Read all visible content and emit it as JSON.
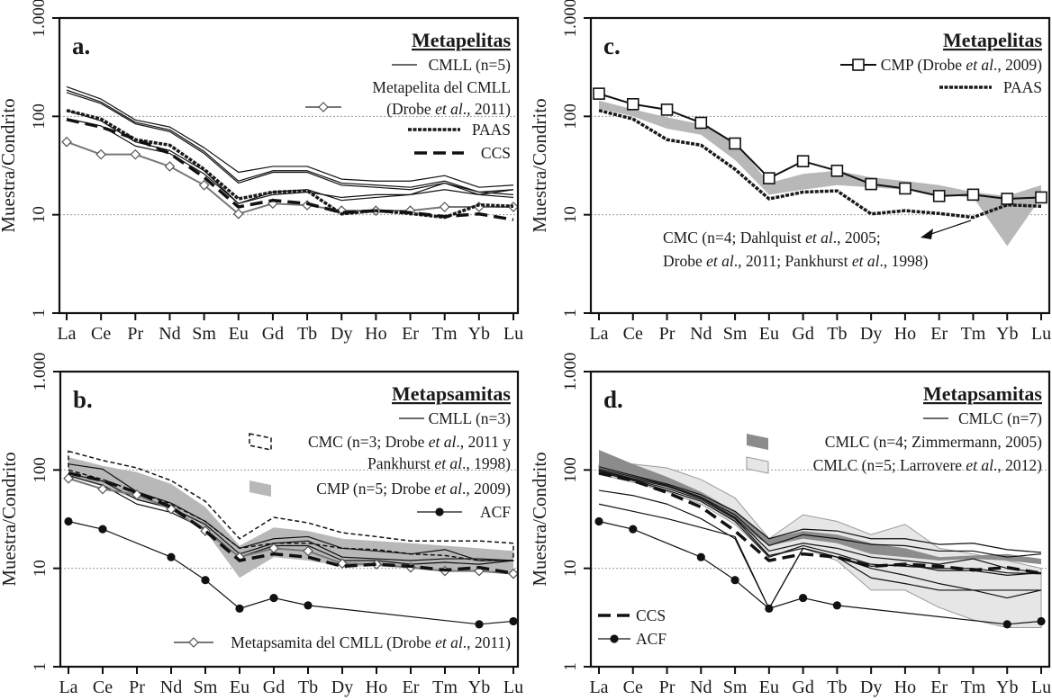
{
  "chart_data": [
    {
      "id": "a",
      "type": "line",
      "panel_label": "a.",
      "title": "Metapelitas",
      "xlabel": "",
      "ylabel": "Muestra/Condrito",
      "yscale": "log",
      "ylim": [
        1,
        1000
      ],
      "yticks": [
        1,
        10,
        100,
        1000
      ],
      "ytick_labels": [
        "1",
        "10",
        "100",
        "1.000"
      ],
      "grid": "dotted at 10 and 100",
      "categories": [
        "La",
        "Ce",
        "Pr",
        "Nd",
        "Sm",
        "Eu",
        "Gd",
        "Tb",
        "Dy",
        "Ho",
        "Er",
        "Tm",
        "Yb",
        "Lu"
      ],
      "legend": [
        {
          "label": "CMLL (n=5)",
          "style": "thin-line"
        },
        {
          "label": "Metapelita del CMLL (Drobe et al., 2011)",
          "style": "grey-diamond"
        },
        {
          "label": "PAAS",
          "style": "dotted-thick"
        },
        {
          "label": "CCS",
          "style": "dashed-thick"
        }
      ],
      "series": [
        {
          "name": "CMLL-1",
          "group": "CMLL (n=5)",
          "style": "thin-line",
          "values": [
            200,
            150,
            92,
            78,
            48,
            27,
            31,
            31,
            23,
            22,
            22,
            25,
            19,
            20
          ]
        },
        {
          "name": "CMLL-2",
          "group": "CMLL (n=5)",
          "style": "thin-line",
          "values": [
            185,
            140,
            87,
            73,
            44,
            22,
            28,
            28,
            21,
            20,
            19,
            22,
            17,
            18
          ]
        },
        {
          "name": "CMLL-3",
          "group": "CMLL (n=5)",
          "style": "thin-line",
          "values": [
            175,
            135,
            84,
            70,
            42,
            21,
            27,
            27,
            20,
            19,
            18,
            21,
            16,
            18
          ]
        },
        {
          "name": "CMLL-4",
          "group": "CMLL (n=5)",
          "style": "thin-line",
          "values": [
            115,
            90,
            55,
            45,
            28,
            13,
            16,
            17,
            15,
            16,
            16,
            21,
            17,
            16
          ]
        },
        {
          "name": "CMLL-5",
          "group": "CMLL (n=5)",
          "style": "thin-line",
          "values": [
            95,
            80,
            50,
            42,
            26,
            13,
            17,
            18,
            14,
            15,
            16,
            18,
            16,
            15
          ]
        },
        {
          "name": "Metapelita del CMLL",
          "style": "grey-diamond",
          "values": [
            55,
            41,
            41,
            31,
            20,
            10.2,
            13,
            12.5,
            11,
            11,
            11,
            12,
            12,
            12
          ]
        },
        {
          "name": "PAAS",
          "style": "dotted-thick",
          "values": [
            115,
            94,
            58,
            51,
            29,
            14.5,
            17,
            17.5,
            10.2,
            11,
            10.3,
            9.4,
            12.6,
            12.2
          ]
        },
        {
          "name": "CCS",
          "style": "dashed-thick",
          "values": [
            93,
            78,
            59,
            42,
            24,
            12,
            14,
            13,
            10.5,
            11,
            10.5,
            9.6,
            10.2,
            8.9
          ]
        }
      ]
    },
    {
      "id": "b",
      "type": "line",
      "panel_label": "b.",
      "title": "Metapsamitas",
      "xlabel": "",
      "ylabel": "Muestra/Condrito",
      "yscale": "log",
      "ylim": [
        1,
        1000
      ],
      "yticks": [
        1,
        10,
        100,
        1000
      ],
      "ytick_labels": [
        "1",
        "10",
        "100",
        "1.000"
      ],
      "grid": "dotted at 10 and 100",
      "categories": [
        "La",
        "Ce",
        "Pr",
        "Nd",
        "Sm",
        "Eu",
        "Gd",
        "Tb",
        "Dy",
        "Ho",
        "Er",
        "Tm",
        "Yb",
        "Lu"
      ],
      "legend": [
        {
          "label": "CMLL (n=3)",
          "style": "thin-line"
        },
        {
          "label": "CMC (n=3; Drobe et al., 2011 y Pankhurst et al., 1998)",
          "style": "dashed-outline-field"
        },
        {
          "label": "CMP (n=5; Drobe et al., 2009)",
          "style": "grey-field"
        },
        {
          "label": "ACF",
          "style": "line-black-dot"
        },
        {
          "label": "Metapsamita del CMLL (Drobe et al., 2011)",
          "style": "grey-diamond"
        }
      ],
      "fields": [
        {
          "name": "CMP (n=5)",
          "style": "grey-field",
          "upper": [
            135,
            110,
            95,
            72,
            42,
            17,
            26,
            24,
            20,
            19,
            18,
            17,
            16,
            15
          ],
          "lower": [
            85,
            68,
            50,
            40,
            24,
            8,
            13,
            12,
            10.5,
            10.5,
            10,
            9.5,
            9.5,
            9
          ]
        },
        {
          "name": "CMC (n=3)",
          "style": "dashed-outline-field",
          "upper": [
            155,
            125,
            105,
            78,
            48,
            20,
            33,
            29,
            23,
            21,
            19,
            19,
            19,
            18
          ],
          "lower": [
            100,
            80,
            60,
            45,
            30,
            16,
            18,
            18,
            16,
            15.5,
            14,
            13.5,
            12,
            12
          ]
        }
      ],
      "series": [
        {
          "name": "CMLL-1",
          "group": "CMLL (n=3)",
          "style": "thin-line",
          "values": [
            115,
            102,
            60,
            46,
            30,
            16,
            20,
            21,
            16,
            15,
            14,
            15.5,
            12,
            12
          ]
        },
        {
          "name": "CMLL-2",
          "group": "CMLL (n=3)",
          "style": "thin-line",
          "values": [
            92,
            77,
            50,
            41,
            28,
            14,
            18,
            19,
            13,
            12.5,
            12,
            12.5,
            12.5,
            12
          ]
        },
        {
          "name": "CMLL-3",
          "group": "CMLL (n=3)",
          "style": "thin-line",
          "values": [
            88,
            70,
            45,
            37,
            25,
            13,
            17,
            17,
            12,
            12,
            11,
            11.5,
            11,
            12
          ]
        },
        {
          "name": "Metapsamita del CMLL",
          "style": "grey-diamond",
          "values": [
            82,
            64,
            56,
            40,
            24,
            13,
            16,
            15,
            11.2,
            11,
            10.2,
            9.4,
            9.4,
            8.8
          ]
        },
        {
          "name": "CCS",
          "style": "dashed-thick",
          "values": [
            93,
            78,
            59,
            42,
            24,
            12,
            14,
            13,
            10.5,
            11,
            10.5,
            9.6,
            10.2,
            8.9
          ]
        },
        {
          "name": "ACF",
          "style": "line-black-dot",
          "values": [
            30,
            25,
            null,
            13,
            7.6,
            3.9,
            5,
            4.2,
            null,
            null,
            null,
            null,
            2.7,
            2.9
          ]
        }
      ]
    },
    {
      "id": "c",
      "type": "line",
      "panel_label": "c.",
      "title": "Metapelitas",
      "xlabel": "",
      "ylabel": "Muestra/Condrito",
      "yscale": "log",
      "ylim": [
        1,
        1000
      ],
      "yticks": [
        1,
        10,
        100,
        1000
      ],
      "ytick_labels": [
        "1",
        "10",
        "100",
        "1.000"
      ],
      "grid": "dotted at 10 and 100",
      "categories": [
        "La",
        "Ce",
        "Pr",
        "Nd",
        "Sm",
        "Eu",
        "Gd",
        "Tb",
        "Dy",
        "Ho",
        "Er",
        "Tm",
        "Yb",
        "Lu"
      ],
      "legend": [
        {
          "label": "CMP (Drobe et al., 2009)",
          "style": "line-open-square"
        },
        {
          "label": "PAAS",
          "style": "dotted-thick"
        }
      ],
      "annotation": "CMC (n=4; Dahlquist et al., 2005; Drobe et al., 2011; Pankhurst et al., 1998)",
      "fields": [
        {
          "name": "CMC (n=4)",
          "style": "grey-field",
          "upper": [
            145,
            118,
            98,
            83,
            55,
            21,
            26,
            28,
            24,
            22,
            20,
            17,
            15.5,
            20
          ],
          "lower": [
            120,
            100,
            75,
            65,
            36,
            16,
            18,
            20,
            19,
            18,
            16,
            15,
            4.8,
            15
          ]
        }
      ],
      "series": [
        {
          "name": "CMP (Drobe et al., 2009)",
          "style": "line-open-square",
          "values": [
            170,
            133,
            117,
            86,
            53,
            23.5,
            35,
            28,
            20.5,
            18.5,
            15.5,
            16,
            14.5,
            15
          ]
        },
        {
          "name": "PAAS",
          "style": "dotted-thick",
          "values": [
            115,
            94,
            58,
            51,
            29,
            14.5,
            17,
            17.5,
            10.2,
            11,
            10.3,
            9.4,
            12.6,
            12.2
          ]
        }
      ]
    },
    {
      "id": "d",
      "type": "line",
      "panel_label": "d.",
      "title": "Metapsamitas",
      "xlabel": "",
      "ylabel": "Muestra/Condrito",
      "yscale": "log",
      "ylim": [
        1,
        1000
      ],
      "yticks": [
        1,
        10,
        100,
        1000
      ],
      "ytick_labels": [
        "1",
        "10",
        "100",
        "1.000"
      ],
      "grid": "dotted at 10 and 100",
      "categories": [
        "La",
        "Ce",
        "Pr",
        "Nd",
        "Sm",
        "Eu",
        "Gd",
        "Tb",
        "Dy",
        "Ho",
        "Er",
        "Tm",
        "Yb",
        "Lu"
      ],
      "legend": [
        {
          "label": "CMLC (n=7)",
          "style": "thin-line"
        },
        {
          "label": "CMLC (n=4; Zimmermann, 2005)",
          "style": "dark-grey-field"
        },
        {
          "label": "CMLC (n=5; Larrovere et al., 2012)",
          "style": "light-grey-field"
        },
        {
          "label": "CCS",
          "style": "dashed-thick"
        },
        {
          "label": "ACF",
          "style": "line-black-dot"
        }
      ],
      "fields": [
        {
          "name": "CMLC (n=5; Larrovere)",
          "style": "light-grey-field",
          "upper": [
            115,
            115,
            105,
            80,
            52,
            20,
            35,
            30,
            22,
            28,
            16,
            14,
            12,
            10
          ],
          "lower": [
            90,
            75,
            60,
            45,
            28,
            13,
            16,
            12,
            6,
            6,
            4,
            3,
            2.5,
            2.5
          ]
        },
        {
          "name": "CMLC (n=4; Zimmermann)",
          "style": "dark-grey-field",
          "upper": [
            160,
            115,
            85,
            60,
            38,
            20,
            24,
            22,
            18,
            16,
            13,
            13.5,
            14,
            12.5
          ],
          "lower": [
            105,
            85,
            68,
            50,
            30,
            17,
            20,
            18,
            14,
            13,
            12,
            12.5,
            12,
            11
          ]
        }
      ],
      "series": [
        {
          "name": "CMLC-1",
          "group": "CMLC (n=7)",
          "style": "thin-line",
          "values": [
            108,
            88,
            72,
            56,
            38,
            20,
            25,
            24,
            20,
            20,
            17.5,
            18,
            15.5,
            14.5
          ]
        },
        {
          "name": "CMLC-2",
          "group": "CMLC (n=7)",
          "style": "thin-line",
          "values": [
            103,
            85,
            70,
            53,
            35,
            17,
            22,
            20,
            17.5,
            17,
            15,
            15,
            13,
            14
          ]
        },
        {
          "name": "CMLC-3",
          "group": "CMLC (n=7)",
          "style": "thin-line",
          "values": [
            100,
            82,
            68,
            52,
            33,
            15,
            18,
            16,
            13,
            12,
            11,
            12.5,
            10,
            9
          ]
        },
        {
          "name": "CMLC-4",
          "group": "CMLC (n=7)",
          "style": "thin-line",
          "values": [
            98,
            80,
            65,
            50,
            32,
            13.5,
            16,
            13,
            10.5,
            11,
            9.5,
            9.5,
            8.5,
            9
          ]
        },
        {
          "name": "CMLC-5",
          "group": "CMLC (n=7)",
          "style": "thin-line",
          "values": [
            62,
            55,
            45,
            32,
            20,
            3.9,
            16,
            13,
            8,
            7,
            6,
            6,
            5,
            6
          ]
        },
        {
          "name": "CMLC-6",
          "group": "CMLC (n=7)",
          "style": "thin-line",
          "values": [
            45,
            38,
            32,
            26,
            21,
            3.9,
            16,
            13,
            10,
            8.5,
            7,
            6,
            6,
            6
          ]
        },
        {
          "name": "CMLC-7",
          "group": "CMLC (n=7)",
          "style": "thin-line",
          "values": [
            95,
            78,
            62,
            48,
            30,
            13,
            17,
            14,
            11,
            10.5,
            10,
            10,
            9,
            8.8
          ]
        },
        {
          "name": "CCS",
          "style": "dashed-thick",
          "values": [
            93,
            78,
            59,
            42,
            24,
            12,
            14,
            13,
            10.5,
            11,
            10.5,
            9.6,
            10.2,
            8.9
          ]
        },
        {
          "name": "ACF",
          "style": "line-black-dot",
          "values": [
            30,
            25,
            null,
            13,
            7.6,
            3.9,
            5,
            4.2,
            null,
            null,
            null,
            null,
            2.7,
            2.9
          ]
        }
      ]
    }
  ]
}
